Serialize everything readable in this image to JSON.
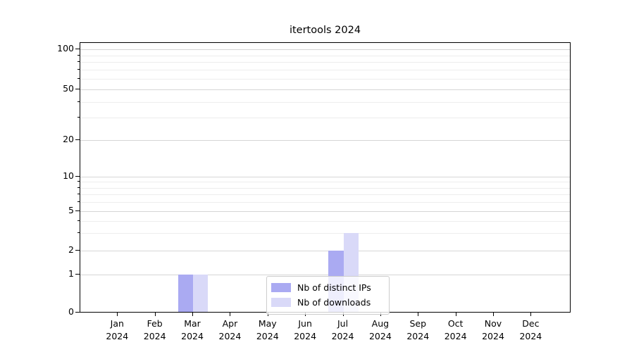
{
  "chart": {
    "title": "itertools 2024"
  },
  "chart_data": {
    "type": "bar",
    "title": "itertools 2024",
    "categories": [
      "Jan 2024",
      "Feb 2024",
      "Mar 2024",
      "Apr 2024",
      "May 2024",
      "Jun 2024",
      "Jul 2024",
      "Aug 2024",
      "Sep 2024",
      "Oct 2024",
      "Nov 2024",
      "Dec 2024"
    ],
    "series": [
      {
        "name": "Nb of distinct IPs",
        "color": "#aaaaf2",
        "values": [
          0,
          0,
          1,
          0,
          0,
          0,
          2,
          0,
          0,
          0,
          0,
          0
        ]
      },
      {
        "name": "Nb of downloads",
        "color": "#d9d9f8",
        "values": [
          0,
          0,
          1,
          0,
          0,
          0,
          3,
          0,
          0,
          0,
          0,
          0
        ]
      }
    ],
    "xlabel": "",
    "ylabel": "",
    "yscale": "symlog",
    "ylim": [
      0,
      105
    ],
    "y_ticks": [
      0,
      1,
      2,
      5,
      10,
      20,
      50,
      100
    ],
    "y_minor_ticks": [
      3,
      4,
      6,
      7,
      8,
      9,
      30,
      40,
      60,
      70,
      80,
      90
    ],
    "grid": "horizontal",
    "legend_position": "lower center"
  },
  "colors": {
    "background": "#ffffff",
    "axis": "#000000",
    "grid_major": "#d6d6d6",
    "grid_minor": "#ededed",
    "legend_border": "#cccccc",
    "text": "#000000"
  }
}
